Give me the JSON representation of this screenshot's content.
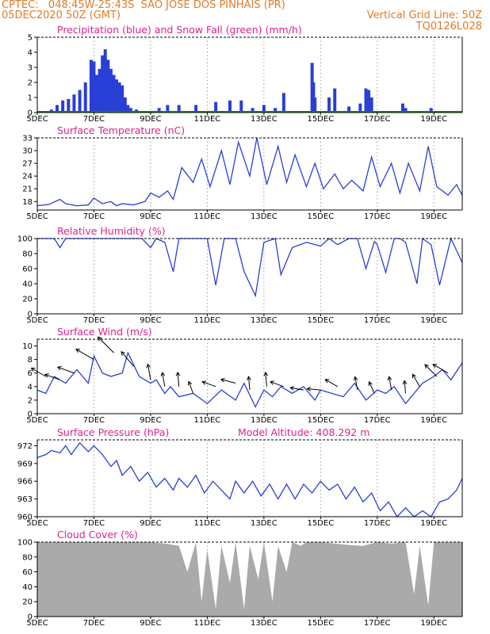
{
  "header": {
    "line1_left": "CPTEC:   048:45W-25:43S  SAO JOSE DOS PINHAIS (PR)",
    "line2_left": "05DEC2020 50Z (GMT)",
    "line2_right": "Vertical Grid Line: 50Z",
    "line3_right": "TQ0126L028"
  },
  "x_ticks": [
    "5DEC",
    "7DEC",
    "9DEC",
    "11DEC",
    "13DEC",
    "15DEC",
    "17DEC",
    "19DEC"
  ],
  "x_tick_days": [
    5,
    7,
    9,
    11,
    13,
    15,
    17,
    19
  ],
  "colors": {
    "header": "#e07b28",
    "title": "#e0218a",
    "line": "#2a3fd6",
    "snow": "#1a8f1a",
    "cloud": "#aaaaaa"
  },
  "chart_data": [
    {
      "type": "bar",
      "title": "Precipitation (blue) and Snow Fall (green) (mm/h)",
      "ylim": [
        0,
        5
      ],
      "yticks": [
        "0",
        "1",
        "2",
        "3",
        "4",
        "5"
      ],
      "x": [
        5.5,
        5.7,
        5.9,
        6.1,
        6.3,
        6.5,
        6.7,
        6.9,
        7.0,
        7.1,
        7.2,
        7.3,
        7.4,
        7.5,
        7.6,
        7.7,
        7.8,
        7.9,
        8.0,
        8.1,
        8.2,
        8.3,
        8.5,
        9.3,
        9.6,
        10.0,
        10.6,
        11.3,
        11.8,
        12.2,
        12.6,
        13.0,
        13.4,
        13.7,
        14.7,
        14.75,
        14.8,
        15.3,
        15.5,
        16.0,
        16.4,
        16.6,
        16.7,
        16.8,
        17.9,
        18.0,
        18.9
      ],
      "series": [
        {
          "name": "Precipitation",
          "values": [
            0.2,
            0.5,
            0.8,
            0.9,
            1.2,
            1.5,
            2.0,
            3.5,
            3.4,
            2.5,
            2.9,
            3.8,
            4.2,
            3.5,
            2.9,
            2.5,
            2.2,
            2.0,
            1.8,
            1.0,
            0.5,
            0.3,
            0.2,
            0.3,
            0.5,
            0.5,
            0.5,
            0.7,
            0.8,
            0.8,
            0.3,
            0.5,
            0.3,
            1.3,
            3.3,
            2.0,
            1.0,
            1.0,
            1.6,
            0.4,
            0.6,
            1.6,
            1.5,
            1.0,
            0.6,
            0.3,
            0.3
          ]
        },
        {
          "name": "Snow Fall",
          "values": [
            0,
            0,
            0,
            0,
            0,
            0,
            0,
            0,
            0,
            0,
            0,
            0,
            0,
            0,
            0,
            0,
            0,
            0,
            0,
            0,
            0,
            0,
            0,
            0,
            0,
            0,
            0,
            0,
            0,
            0,
            0,
            0,
            0,
            0,
            0,
            0,
            0,
            0,
            0,
            0,
            0,
            0,
            0,
            0,
            0,
            0,
            0
          ]
        }
      ]
    },
    {
      "type": "line",
      "title": "Surface Temperature (nC)",
      "ylim": [
        16,
        33
      ],
      "yticks": [
        "18",
        "21",
        "24",
        "27",
        "30",
        "33"
      ],
      "x": [
        5.0,
        5.4,
        5.8,
        6.0,
        6.4,
        6.8,
        7.0,
        7.3,
        7.6,
        7.8,
        8.0,
        8.4,
        8.8,
        9.0,
        9.3,
        9.6,
        9.8,
        10.1,
        10.5,
        10.8,
        11.1,
        11.5,
        11.8,
        12.1,
        12.5,
        12.75,
        13.1,
        13.5,
        13.8,
        14.1,
        14.5,
        14.8,
        15.1,
        15.5,
        15.8,
        16.1,
        16.5,
        16.8,
        17.1,
        17.5,
        17.8,
        18.1,
        18.5,
        18.8,
        19.1,
        19.5,
        19.8,
        20.0
      ],
      "series": [
        {
          "name": "Temperature",
          "values": [
            17.0,
            17.3,
            18.5,
            17.5,
            17.0,
            17.2,
            18.8,
            17.5,
            18.0,
            17.0,
            17.5,
            17.2,
            18.0,
            20.0,
            19.0,
            20.5,
            18.5,
            26.0,
            22.5,
            28.0,
            21.5,
            30.0,
            22.0,
            32.0,
            24.0,
            33.0,
            22.0,
            31.0,
            22.5,
            29.0,
            21.5,
            27.0,
            21.0,
            24.5,
            21.0,
            23.0,
            20.5,
            28.5,
            21.5,
            27.0,
            20.0,
            27.0,
            20.5,
            31.0,
            21.5,
            19.5,
            22.0,
            19.5
          ]
        }
      ]
    },
    {
      "type": "line",
      "title": "Relative Humidity (%)",
      "ylim": [
        0,
        100
      ],
      "yticks": [
        "0",
        "20",
        "40",
        "60",
        "80",
        "100"
      ],
      "x": [
        5.0,
        5.6,
        5.8,
        6.0,
        6.5,
        7.0,
        7.5,
        8.0,
        8.7,
        9.0,
        9.2,
        9.5,
        9.8,
        10.0,
        10.5,
        11.0,
        11.3,
        11.6,
        12.0,
        12.3,
        12.7,
        13.0,
        13.4,
        13.6,
        14.0,
        14.5,
        15.0,
        15.3,
        15.6,
        16.0,
        16.3,
        16.6,
        16.9,
        17.0,
        17.3,
        17.6,
        17.8,
        18.0,
        18.4,
        18.6,
        18.9,
        19.2,
        19.6,
        20.0
      ],
      "series": [
        {
          "name": "Relative Humidity",
          "values": [
            100,
            100,
            88,
            100,
            100,
            100,
            100,
            100,
            100,
            88,
            100,
            95,
            56,
            100,
            100,
            100,
            38,
            100,
            100,
            56,
            24,
            95,
            100,
            52,
            88,
            95,
            90,
            100,
            92,
            100,
            100,
            60,
            96,
            92,
            55,
            100,
            100,
            95,
            40,
            100,
            92,
            38,
            100,
            68
          ]
        }
      ]
    },
    {
      "type": "line",
      "title": "Surface Wind (m/s)",
      "ylim": [
        0,
        11
      ],
      "yticks": [
        "0",
        "2",
        "4",
        "6",
        "8",
        "10"
      ],
      "x": [
        5.0,
        5.3,
        5.6,
        6.0,
        6.4,
        6.8,
        7.0,
        7.3,
        7.6,
        8.0,
        8.2,
        8.6,
        9.0,
        9.2,
        9.5,
        9.7,
        10.0,
        10.5,
        11.0,
        11.5,
        12.0,
        12.3,
        12.7,
        13.0,
        13.3,
        13.6,
        14.0,
        14.4,
        14.8,
        15.0,
        15.4,
        15.8,
        16.2,
        16.6,
        17.0,
        17.3,
        17.6,
        18.0,
        18.3,
        18.6,
        19.0,
        19.3,
        19.6,
        20.0
      ],
      "series": [
        {
          "name": "Wind speed",
          "values": [
            3.5,
            3.0,
            5.5,
            4.5,
            6.5,
            4.5,
            8.5,
            6.0,
            5.5,
            6.0,
            9.0,
            5.5,
            4.5,
            5.0,
            3.0,
            4.0,
            2.5,
            3.0,
            1.5,
            3.5,
            2.0,
            4.5,
            1.0,
            3.5,
            2.5,
            4.0,
            3.0,
            4.0,
            2.0,
            3.5,
            3.0,
            2.5,
            4.5,
            2.0,
            3.5,
            3.0,
            4.0,
            1.5,
            3.0,
            4.5,
            5.5,
            6.5,
            5.0,
            7.5
          ]
        }
      ]
    },
    {
      "type": "line",
      "title": "Surface Pressure (hPa)",
      "annotation": "Model Altitude: 408.292 m",
      "ylim": [
        960,
        973
      ],
      "yticks": [
        "960",
        "963",
        "966",
        "969",
        "972"
      ],
      "x": [
        5.0,
        5.3,
        5.5,
        5.8,
        6.0,
        6.2,
        6.5,
        6.8,
        7.0,
        7.3,
        7.6,
        7.8,
        8.0,
        8.3,
        8.6,
        8.9,
        9.2,
        9.5,
        9.8,
        10.0,
        10.3,
        10.6,
        10.9,
        11.2,
        11.5,
        11.8,
        12.0,
        12.3,
        12.6,
        12.9,
        13.2,
        13.5,
        13.8,
        14.1,
        14.4,
        14.7,
        15.0,
        15.3,
        15.6,
        15.9,
        16.2,
        16.5,
        16.8,
        17.1,
        17.4,
        17.7,
        18.0,
        18.3,
        18.6,
        18.9,
        19.2,
        19.5,
        19.8,
        20.0
      ],
      "series": [
        {
          "name": "Pressure",
          "values": [
            970.0,
            970.5,
            971.2,
            970.8,
            972.0,
            970.5,
            972.5,
            971.0,
            972.0,
            970.5,
            968.5,
            969.5,
            967.0,
            968.5,
            966.0,
            967.5,
            965.0,
            966.5,
            964.5,
            966.5,
            965.0,
            967.0,
            964.0,
            966.0,
            964.5,
            963.0,
            966.0,
            964.0,
            966.0,
            963.5,
            965.5,
            963.0,
            965.5,
            963.0,
            965.5,
            964.0,
            966.0,
            964.5,
            965.5,
            963.0,
            965.0,
            962.5,
            964.0,
            961.0,
            962.5,
            960.0,
            961.5,
            959.5,
            961.0,
            960.0,
            962.5,
            963.0,
            964.5,
            966.5
          ]
        }
      ]
    },
    {
      "type": "bar",
      "title": "Cloud Cover (%)",
      "ylim": [
        0,
        100
      ],
      "yticks": [
        "0",
        "20",
        "40",
        "60",
        "80",
        "100"
      ],
      "x": [
        5.0,
        5.5,
        6.0,
        6.5,
        7.0,
        7.5,
        8.0,
        8.5,
        9.0,
        9.5,
        10.0,
        10.3,
        10.6,
        10.8,
        11.0,
        11.3,
        11.5,
        11.8,
        12.0,
        12.3,
        12.5,
        12.8,
        13.0,
        13.3,
        13.5,
        13.8,
        14.0,
        14.3,
        14.5,
        15.0,
        15.5,
        16.0,
        16.5,
        17.0,
        17.5,
        18.0,
        18.3,
        18.5,
        18.8,
        19.0,
        19.5,
        20.0
      ],
      "series": [
        {
          "name": "Cloud Cover",
          "values": [
            100,
            100,
            100,
            100,
            100,
            100,
            100,
            100,
            100,
            98,
            95,
            60,
            100,
            20,
            90,
            10,
            95,
            45,
            100,
            10,
            95,
            50,
            100,
            20,
            95,
            60,
            100,
            95,
            100,
            100,
            98,
            96,
            95,
            100,
            98,
            100,
            30,
            95,
            15,
            100,
            100,
            100
          ]
        }
      ]
    }
  ],
  "wind_arrows": {
    "note": "",
    "x": [
      5.3,
      5.8,
      6.3,
      7.0,
      7.7,
      8.4,
      9.0,
      9.5,
      10.0,
      10.5,
      11.3,
      12.0,
      12.5,
      13.1,
      13.7,
      14.4,
      15.0,
      15.6,
      16.3,
      16.9,
      17.5,
      18.0,
      18.5,
      19.1,
      19.5
    ],
    "dir_deg": [
      150,
      160,
      160,
      150,
      135,
      130,
      100,
      100,
      95,
      110,
      160,
      165,
      95,
      95,
      160,
      170,
      175,
      150,
      100,
      115,
      100,
      95,
      120,
      135,
      150
    ],
    "speed": [
      5.5,
      5.0,
      6.0,
      8.0,
      9.0,
      7.0,
      5.0,
      4.0,
      4.0,
      3.0,
      4.0,
      4.5,
      3.5,
      4.0,
      4.0,
      3.5,
      3.5,
      4.0,
      3.5,
      3.0,
      3.5,
      3.0,
      4.0,
      5.5,
      6.0
    ]
  }
}
